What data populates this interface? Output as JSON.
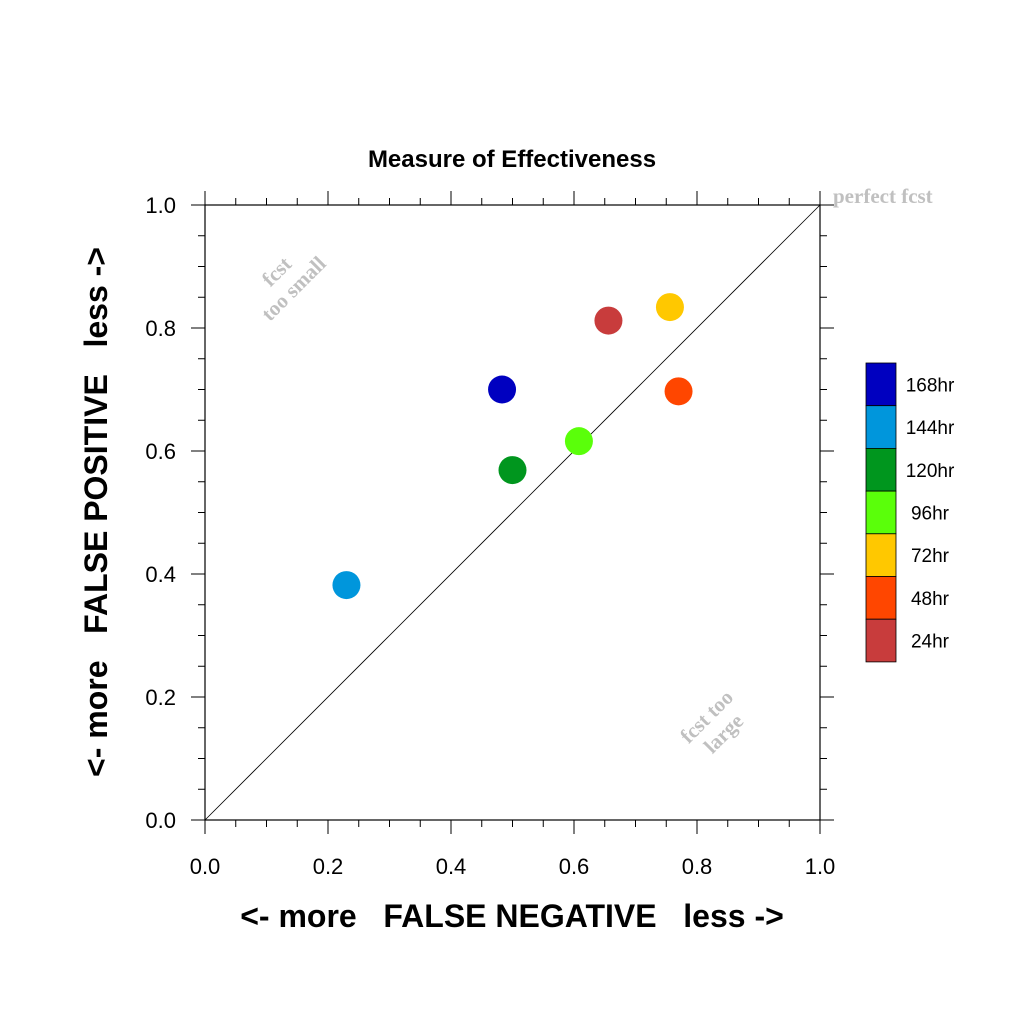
{
  "chart_data": {
    "type": "scatter",
    "title": "Measure of Effectiveness",
    "xlabel": "<- more   FALSE NEGATIVE   less ->",
    "ylabel": "<- more   FALSE POSITIVE   less ->",
    "xlim": [
      0.0,
      1.0
    ],
    "ylim": [
      0.0,
      1.0
    ],
    "xticks": [
      "0.0",
      "0.2",
      "0.4",
      "0.6",
      "0.8",
      "1.0"
    ],
    "yticks": [
      "0.0",
      "0.2",
      "0.4",
      "0.6",
      "0.8",
      "1.0"
    ],
    "grid": false,
    "legend_position": "right",
    "reference_line": "diagonal",
    "annotations": {
      "perfect": "perfect fcst",
      "small_line1": "fcst",
      "small_line2": "too small",
      "large_line1": "fcst too",
      "large_line2": "large"
    },
    "series": [
      {
        "name": "168hr",
        "color": "#0000c0",
        "x": 0.483,
        "y": 0.7
      },
      {
        "name": "144hr",
        "color": "#0096dc",
        "x": 0.23,
        "y": 0.382
      },
      {
        "name": "120hr",
        "color": "#00961e",
        "x": 0.5,
        "y": 0.569
      },
      {
        "name": "96hr",
        "color": "#5aff0a",
        "x": 0.608,
        "y": 0.616
      },
      {
        "name": "72hr",
        "color": "#ffc800",
        "x": 0.756,
        "y": 0.834
      },
      {
        "name": "48hr",
        "color": "#ff4600",
        "x": 0.77,
        "y": 0.697
      },
      {
        "name": "24hr",
        "color": "#c83c3c",
        "x": 0.656,
        "y": 0.812
      }
    ]
  }
}
